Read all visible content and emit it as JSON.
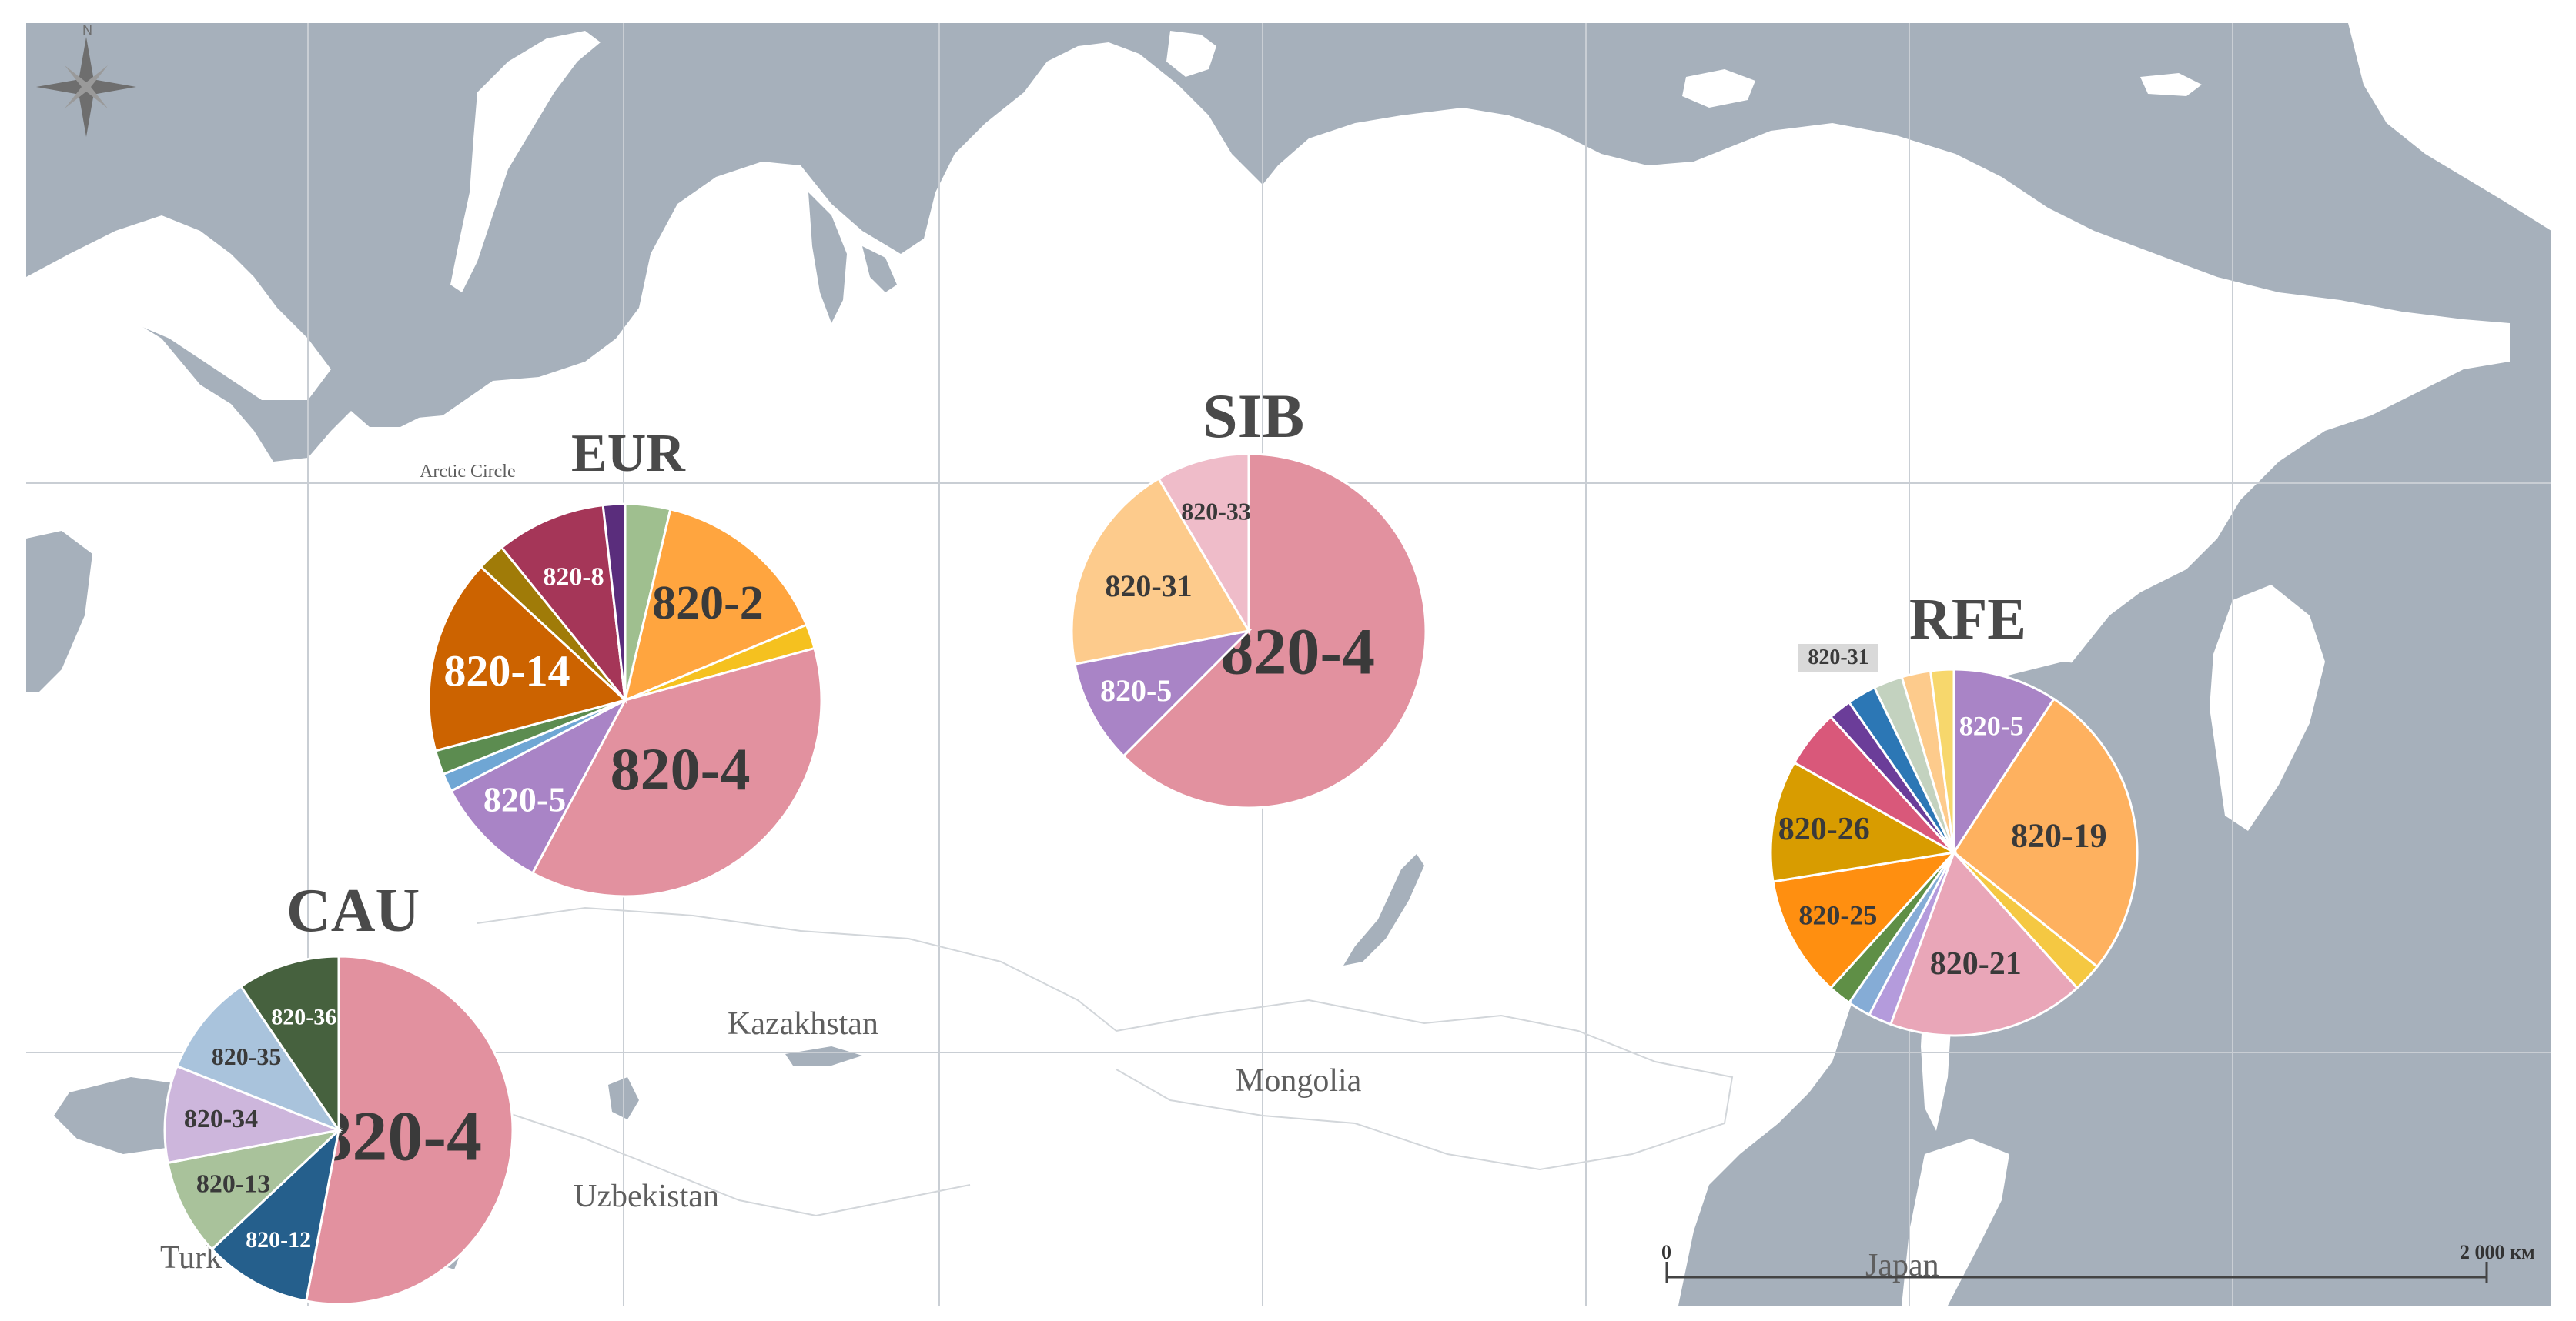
{
  "colors": {
    "sea": "#a6b0bb",
    "land": "#ffffff",
    "grid": "#c9ced4",
    "border": "#d2d6da",
    "title": "#4a4a4a"
  },
  "labels": {
    "compass_n": "N",
    "arctic_circle": "Arctic Circle",
    "kazakhstan": "Kazakhstan",
    "mongolia": "Mongolia",
    "uzbekistan": "Uzbekistan",
    "turkmenistan_partial": "Turk",
    "japan": "Japan"
  },
  "scale_bar": {
    "start_label": "0",
    "end_label": "2 000 км"
  },
  "chart_data": [
    {
      "type": "pie",
      "region": "EUR",
      "title": "EUR",
      "slices": [
        {
          "label": "",
          "value": 3.7,
          "color": "#9fbf8f"
        },
        {
          "label": "820-2",
          "value": 15.0,
          "color": "#ffa53f"
        },
        {
          "label": "",
          "value": 2.0,
          "color": "#f5c11f"
        },
        {
          "label": "820-4",
          "value": 37.0,
          "color": "#e2919f"
        },
        {
          "label": "820-5",
          "value": 9.5,
          "color": "#a984c6"
        },
        {
          "label": "",
          "value": 1.5,
          "color": "#6fa6d4"
        },
        {
          "label": "",
          "value": 2.0,
          "color": "#5c8c50"
        },
        {
          "label": "820-14",
          "value": 16.0,
          "color": "#cc6300"
        },
        {
          "label": "",
          "value": 2.3,
          "color": "#a07b08"
        },
        {
          "label": "820-8",
          "value": 9.0,
          "color": "#a53658"
        },
        {
          "label": "",
          "value": 1.8,
          "color": "#5a2d7c"
        }
      ]
    },
    {
      "type": "pie",
      "region": "SIB",
      "title": "SIB",
      "slices": [
        {
          "label": "820-4",
          "value": 62.5,
          "color": "#e2919f"
        },
        {
          "label": "820-5",
          "value": 9.5,
          "color": "#a984c6"
        },
        {
          "label": "820-31",
          "value": 19.5,
          "color": "#fdcb8c"
        },
        {
          "label": "820-33",
          "value": 8.5,
          "color": "#efbcc9"
        }
      ]
    },
    {
      "type": "pie",
      "region": "RFE",
      "title": "RFE",
      "slices": [
        {
          "label": "820-5",
          "value": 9.0,
          "color": "#a984c6"
        },
        {
          "label": "820-19",
          "value": 26.0,
          "color": "#feb15f"
        },
        {
          "label": "",
          "value": 2.5,
          "color": "#f5c842"
        },
        {
          "label": "820-21",
          "value": 17.0,
          "color": "#e9a6b8"
        },
        {
          "label": "",
          "value": 2.0,
          "color": "#b49bdc"
        },
        {
          "label": "",
          "value": 2.0,
          "color": "#85acd6"
        },
        {
          "label": "",
          "value": 2.0,
          "color": "#5f8f46"
        },
        {
          "label": "820-25",
          "value": 10.5,
          "color": "#ff8f10"
        },
        {
          "label": "820-26",
          "value": 10.5,
          "color": "#d89c00"
        },
        {
          "label": "",
          "value": 5.0,
          "color": "#d9587a"
        },
        {
          "label": "",
          "value": 2.0,
          "color": "#6b3d99"
        },
        {
          "label": "",
          "value": 2.5,
          "color": "#2c77b5"
        },
        {
          "label": "",
          "value": 2.5,
          "color": "#c3d2bf"
        },
        {
          "label": "820-31",
          "value": 2.5,
          "color": "#fdcb8c"
        },
        {
          "label": "",
          "value": 2.0,
          "color": "#f7d76c"
        }
      ]
    },
    {
      "type": "pie",
      "region": "CAU",
      "title": "CAU",
      "slices": [
        {
          "label": "820-4",
          "value": 53.0,
          "color": "#e2919f"
        },
        {
          "label": "820-12",
          "value": 10.0,
          "color": "#255f8c"
        },
        {
          "label": "820-13",
          "value": 9.0,
          "color": "#a9c29b"
        },
        {
          "label": "820-34",
          "value": 9.0,
          "color": "#cdb6dc"
        },
        {
          "label": "820-35",
          "value": 9.5,
          "color": "#a9c3dc"
        },
        {
          "label": "820-36",
          "value": 9.5,
          "color": "#46613e"
        }
      ]
    }
  ]
}
